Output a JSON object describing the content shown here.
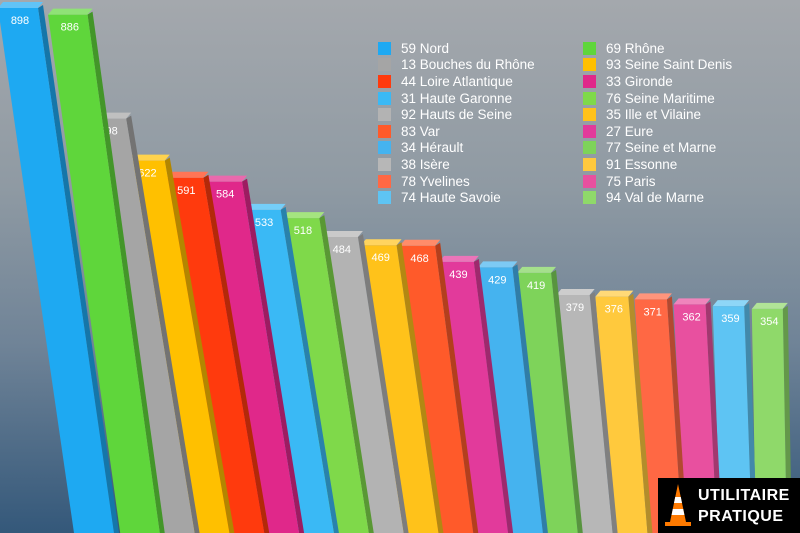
{
  "chart_data": {
    "type": "bar",
    "title": "",
    "xlabel": "",
    "ylabel": "",
    "ylim": [
      0,
      900
    ],
    "grid": false,
    "legend_position": "top-right",
    "categories": [
      "59 Nord",
      "69 Rhône",
      "13 Bouches du Rhône",
      "93 Seine Saint Denis",
      "44 Loire Atlantique",
      "33 Gironde",
      "31 Haute Garonne",
      "76 Seine Maritime",
      "92 Hauts de Seine",
      "35 Ille et Vilaine",
      "83 Var",
      "27 Eure",
      "34 Hérault",
      "77 Seine et Marne",
      "38 Isère",
      "91 Essonne",
      "78 Yvelines",
      "75 Paris",
      "74 Haute Savoie",
      "94 Val de Marne"
    ],
    "values": [
      898,
      886,
      698,
      622,
      591,
      584,
      533,
      518,
      484,
      469,
      468,
      439,
      429,
      419,
      379,
      376,
      371,
      362,
      359,
      354
    ],
    "value_labels": [
      "898",
      "886",
      "698",
      "622",
      "591",
      "584",
      "533",
      "518",
      "484",
      "469",
      "468",
      "439",
      "429",
      "419",
      "379",
      "376",
      "371",
      "362",
      "359",
      "354"
    ],
    "colors": [
      "#1ea9f2",
      "#5fd63b",
      "#a5a5a5",
      "#ffc000",
      "#ff3a0d",
      "#e0288a",
      "#3ab9f5",
      "#7fd94a",
      "#b3b3b3",
      "#ffc21a",
      "#ff5a2a",
      "#e23a9b",
      "#45b3ef",
      "#7ed35a",
      "#b7b7b7",
      "#ffc93d",
      "#ff6844",
      "#e8509f",
      "#5ec4f3",
      "#8fd96a"
    ]
  },
  "legend": [
    {
      "label": "59 Nord",
      "color": "#1ea9f2"
    },
    {
      "label": "13 Bouches du Rhône",
      "color": "#a5a5a5"
    },
    {
      "label": "44 Loire Atlantique",
      "color": "#ff3a0d"
    },
    {
      "label": "31 Haute Garonne",
      "color": "#3ab9f5"
    },
    {
      "label": "92 Hauts de Seine",
      "color": "#b3b3b3"
    },
    {
      "label": "83 Var",
      "color": "#ff5a2a"
    },
    {
      "label": "34 Hérault",
      "color": "#45b3ef"
    },
    {
      "label": "38 Isère",
      "color": "#b7b7b7"
    },
    {
      "label": "78 Yvelines",
      "color": "#ff6844"
    },
    {
      "label": "74 Haute Savoie",
      "color": "#5ec4f3"
    },
    {
      "label": "69 Rhône",
      "color": "#5fd63b"
    },
    {
      "label": "93 Seine Saint Denis",
      "color": "#ffc000"
    },
    {
      "label": "33 Gironde",
      "color": "#e0288a"
    },
    {
      "label": "76 Seine Maritime",
      "color": "#7fd94a"
    },
    {
      "label": "35 Ille et Vilaine",
      "color": "#ffc21a"
    },
    {
      "label": "27 Eure",
      "color": "#e23a9b"
    },
    {
      "label": "77 Seine et Marne",
      "color": "#7ed35a"
    },
    {
      "label": "91 Essonne",
      "color": "#ffc93d"
    },
    {
      "label": "75 Paris",
      "color": "#e8509f"
    },
    {
      "label": "94 Val de Marne",
      "color": "#8fd96a"
    }
  ],
  "logo": {
    "line1": "UTILITAIRE",
    "line2": "PRATIQUE",
    "icon": "traffic-cone-icon"
  }
}
